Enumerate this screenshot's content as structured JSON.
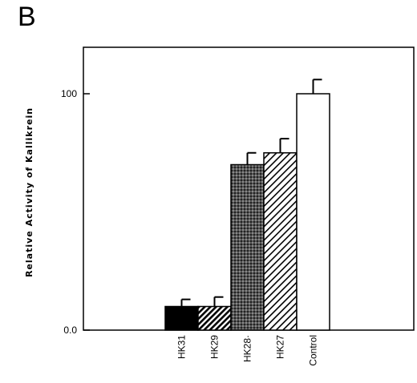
{
  "panel_label": "B",
  "chart_data": {
    "type": "bar",
    "title": "",
    "xlabel": "",
    "ylabel": "Relative  Activity  of  Kallikrein",
    "ylim": [
      0,
      100
    ],
    "yticks": [
      {
        "value": 0,
        "label": "0.0"
      },
      {
        "value": 100,
        "label": "100"
      }
    ],
    "categories": [
      "HK31",
      "HK29",
      "HK28·",
      "HK27",
      "Control"
    ],
    "values": [
      10,
      10,
      70,
      75,
      100
    ],
    "errors": [
      3,
      4,
      5,
      6,
      6
    ],
    "fills": [
      "solid-black",
      "dense-hatch",
      "crosshatch",
      "diagonal-hatch",
      "white"
    ],
    "grid": false,
    "legend": "none"
  }
}
